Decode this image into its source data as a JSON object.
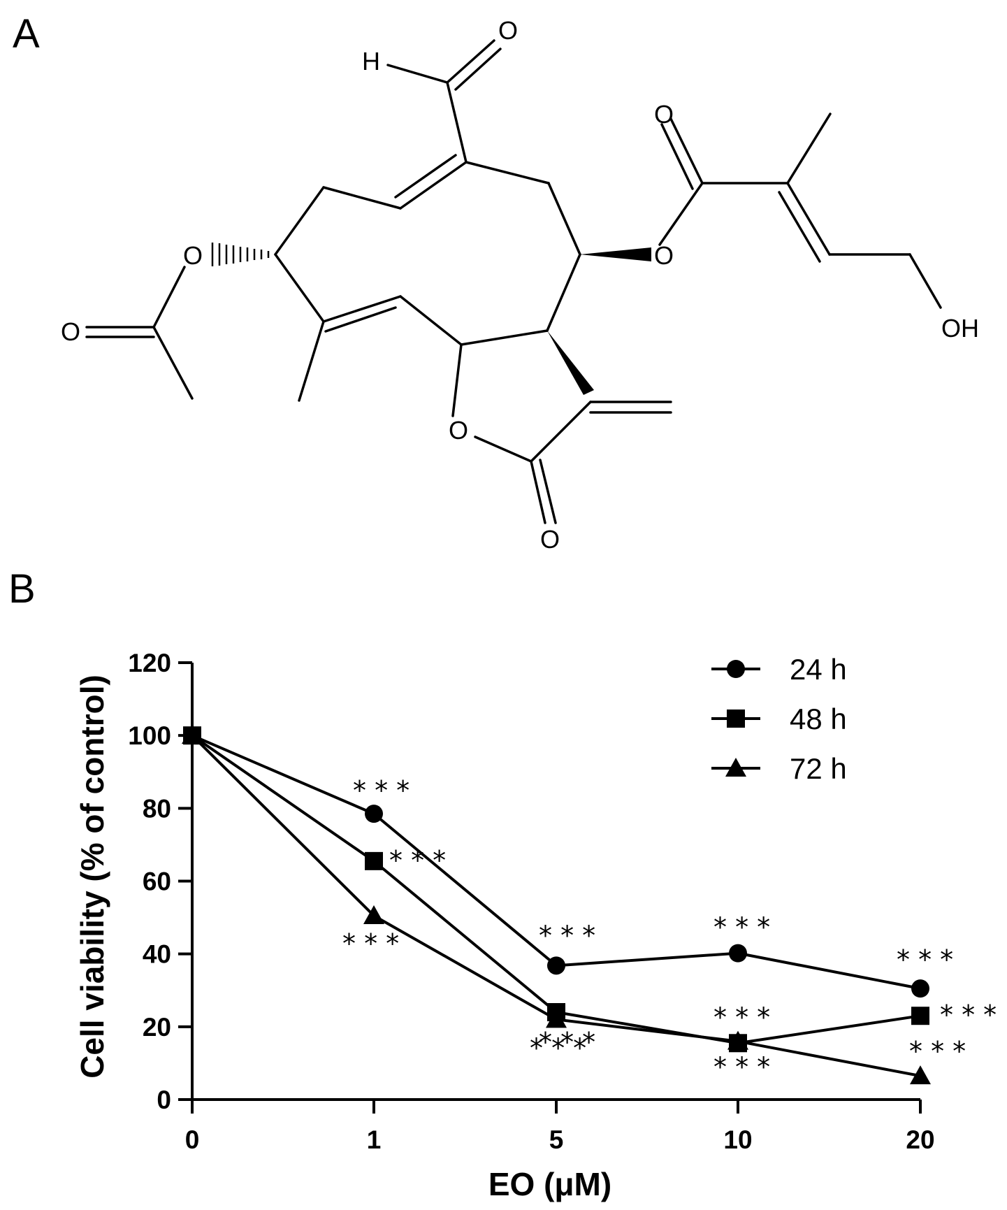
{
  "panels": {
    "a": "A",
    "b": "B"
  },
  "structure_labels": {
    "h_aldehyde": "H",
    "o_aldehyde": "O",
    "o_ester_carbonyl": "O",
    "o_ester_link": "O",
    "oh": "OH",
    "o_acetate_link": "O",
    "o_acetate_carbonyl": "O",
    "o_ring": "O",
    "o_lactone_carbonyl": "O"
  },
  "chart_data": {
    "type": "line",
    "categories": [
      "0",
      "1",
      "5",
      "10",
      "20"
    ],
    "xlabel": "EO (μM)",
    "ylabel": "Cell viability (% of control)",
    "ylim": [
      0,
      120
    ],
    "yticks": [
      0,
      20,
      40,
      60,
      80,
      100,
      120
    ],
    "legend_position": "top-right",
    "series": [
      {
        "name": "24 h",
        "marker": "circle",
        "values": [
          100,
          78.5,
          36.8,
          40.2,
          30.5
        ],
        "significance": [
          "",
          "***",
          "***",
          "***",
          "***"
        ]
      },
      {
        "name": "48 h",
        "marker": "square",
        "values": [
          100,
          65.5,
          24,
          15.5,
          23
        ],
        "significance": [
          "",
          "***",
          "***",
          "***",
          "***"
        ]
      },
      {
        "name": "72 h",
        "marker": "triangle",
        "values": [
          100,
          50.5,
          22,
          16,
          6.5
        ],
        "significance": [
          "",
          "***",
          "***",
          "***",
          "***"
        ]
      }
    ]
  }
}
